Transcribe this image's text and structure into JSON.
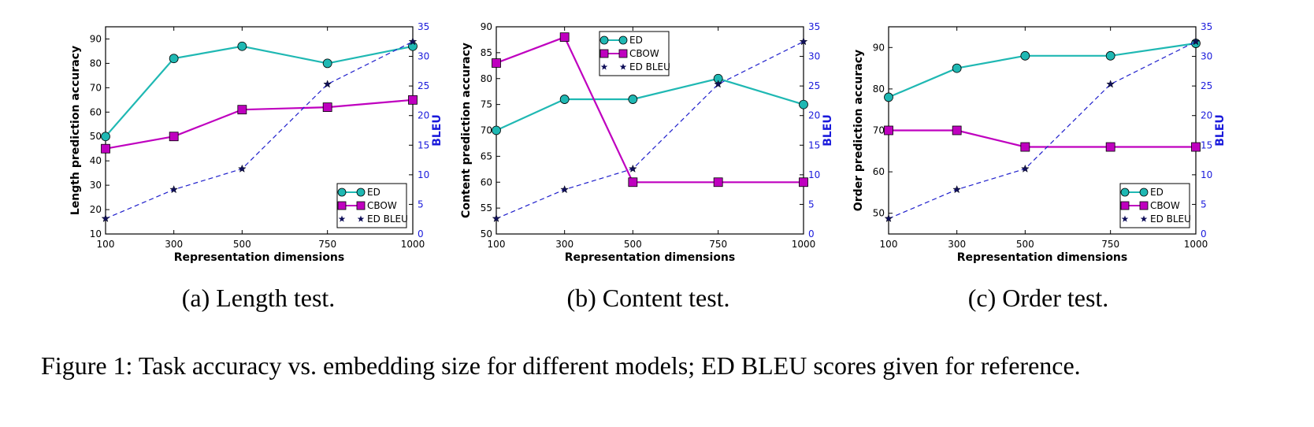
{
  "figure": {
    "label": "Figure 1:",
    "text": "Task accuracy vs. embedding size for different models; ED BLEU scores given for reference."
  },
  "colors": {
    "ed": "#1fb8b3",
    "cbow": "#bf00bf",
    "ed_bleu": "#1f1fcc",
    "right_axis": "#1a1adb"
  },
  "chart_data": [
    {
      "type": "line",
      "caption": "(a) Length test.",
      "xlabel": "Representation dimensions",
      "ylabel": "Length prediction accuracy",
      "y2label": "BLEU",
      "categories": [
        "100",
        "300",
        "500",
        "750",
        "1000"
      ],
      "x": [
        100,
        300,
        500,
        750,
        1000
      ],
      "ylim": [
        10,
        95
      ],
      "yticks": [
        10,
        20,
        30,
        40,
        50,
        60,
        70,
        80,
        90
      ],
      "y2lim": [
        0,
        35
      ],
      "y2ticks": [
        0,
        5,
        10,
        15,
        20,
        25,
        30,
        35
      ],
      "legend_position": "bottom-right",
      "series": [
        {
          "name": "ED",
          "axis": "left",
          "values": [
            50,
            82,
            87,
            80,
            87
          ]
        },
        {
          "name": "CBOW",
          "axis": "left",
          "values": [
            45,
            50,
            61,
            62,
            65
          ]
        },
        {
          "name": "ED BLEU",
          "axis": "right",
          "values": [
            2.6,
            7.5,
            11,
            25.3,
            32.5
          ]
        }
      ]
    },
    {
      "type": "line",
      "caption": "(b) Content test.",
      "xlabel": "Representation dimensions",
      "ylabel": "Content prediction accuracy",
      "y2label": "BLEU",
      "categories": [
        "100",
        "300",
        "500",
        "750",
        "1000"
      ],
      "x": [
        100,
        300,
        500,
        750,
        1000
      ],
      "ylim": [
        50,
        90
      ],
      "yticks": [
        50,
        55,
        60,
        65,
        70,
        75,
        80,
        85,
        90
      ],
      "y2lim": [
        0,
        35
      ],
      "y2ticks": [
        0,
        5,
        10,
        15,
        20,
        25,
        30,
        35
      ],
      "legend_position": "top-center",
      "series": [
        {
          "name": "ED",
          "axis": "left",
          "values": [
            70,
            76,
            76,
            80,
            75
          ]
        },
        {
          "name": "CBOW",
          "axis": "left",
          "values": [
            83,
            88,
            60,
            60,
            60
          ]
        },
        {
          "name": "ED BLEU",
          "axis": "right",
          "values": [
            2.6,
            7.5,
            11,
            25.3,
            32.5
          ]
        }
      ]
    },
    {
      "type": "line",
      "caption": "(c) Order test.",
      "xlabel": "Representation dimensions",
      "ylabel": "Order prediction accuracy",
      "y2label": "BLEU",
      "categories": [
        "100",
        "300",
        "500",
        "750",
        "1000"
      ],
      "x": [
        100,
        300,
        500,
        750,
        1000
      ],
      "ylim": [
        45,
        95
      ],
      "yticks": [
        50,
        60,
        70,
        80,
        90
      ],
      "y2lim": [
        0,
        35
      ],
      "y2ticks": [
        0,
        5,
        10,
        15,
        20,
        25,
        30,
        35
      ],
      "legend_position": "bottom-right",
      "series": [
        {
          "name": "ED",
          "axis": "left",
          "values": [
            78,
            85,
            88,
            88,
            91
          ]
        },
        {
          "name": "CBOW",
          "axis": "left",
          "values": [
            70,
            70,
            66,
            66,
            66
          ]
        },
        {
          "name": "ED BLEU",
          "axis": "right",
          "values": [
            2.6,
            7.5,
            11,
            25.3,
            32.5
          ]
        }
      ]
    }
  ]
}
